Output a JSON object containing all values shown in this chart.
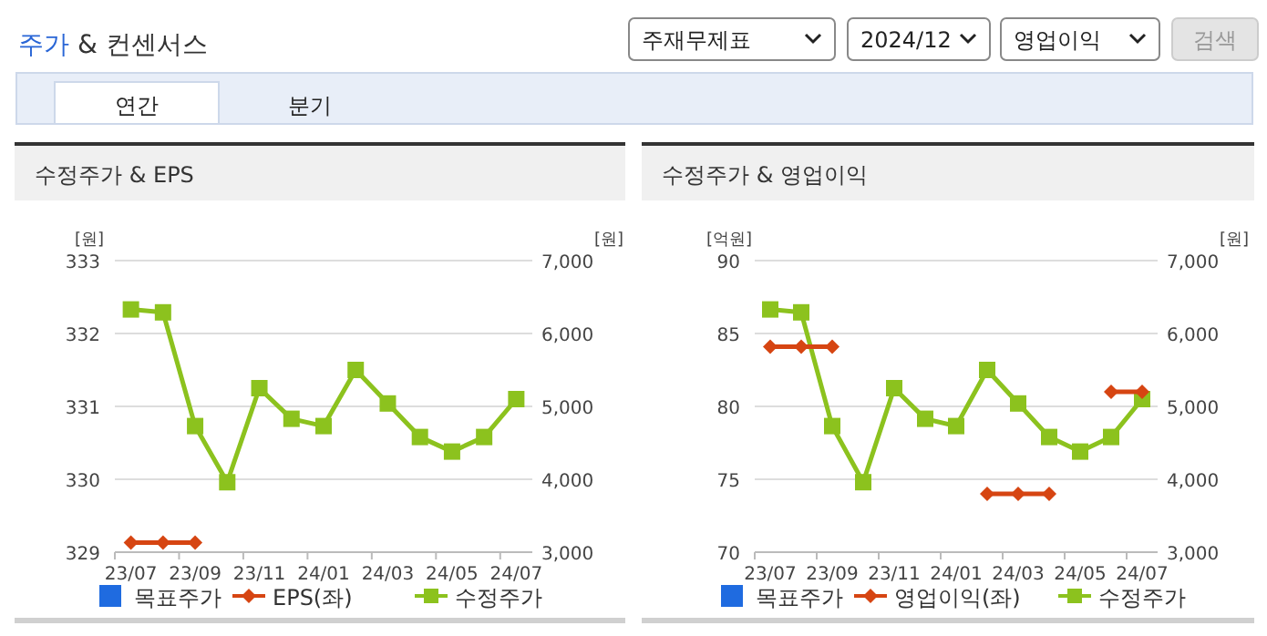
{
  "chart_data": [
    {
      "type": "other",
      "title": "주가 & 컨센서스",
      "annotations": [
        "주재무제표",
        "2024/12",
        "영업이익",
        "검색",
        "연간",
        "분기"
      ]
    },
    {
      "type": "line",
      "title": "수정주가 & EPS",
      "ylabel": "[원]",
      "y2label": "[원]",
      "categories": [
        "23/07",
        null,
        "23/09",
        null,
        "23/11",
        null,
        "24/01",
        null,
        "24/03",
        null,
        "24/05",
        null,
        "24/07"
      ],
      "ylim": [
        329,
        333
      ],
      "yticks": [
        329,
        330,
        331,
        332,
        333
      ],
      "y2lim": [
        3000,
        7000
      ],
      "y2ticks": [
        {
          "value": 3000,
          "label": "3,000"
        },
        {
          "value": 4000,
          "label": "4,000"
        },
        {
          "value": 5000,
          "label": "5,000"
        },
        {
          "value": 6000,
          "label": "6,000"
        },
        {
          "value": 7000,
          "label": "7,000"
        }
      ],
      "grid": "y",
      "legend": "bottom",
      "series": [
        {
          "name": "목표주가",
          "type": "scatter",
          "marker": "square",
          "color": "#1f6be0",
          "values": [
            null,
            null,
            null,
            null,
            null,
            null,
            null,
            null,
            null,
            null,
            null,
            null,
            null
          ]
        },
        {
          "name": "EPS(좌)",
          "type": "line",
          "marker": "diamond",
          "color": "#d64512",
          "values": [
            329.13,
            329.13,
            329.13,
            null,
            null,
            null,
            null,
            null,
            null,
            null,
            null,
            null,
            null
          ]
        },
        {
          "name": "수정주가",
          "type": "line",
          "marker": "square",
          "axis": "y2",
          "color": "#8cc21e",
          "values": [
            6330,
            6290,
            4730,
            3960,
            5250,
            4830,
            4730,
            5500,
            5040,
            4580,
            4380,
            4580,
            5100
          ]
        }
      ]
    },
    {
      "type": "line",
      "title": "수정주가 & 영업이익",
      "ylabel": "[억원]",
      "y2label": "[원]",
      "categories": [
        "23/07",
        null,
        "23/09",
        null,
        "23/11",
        null,
        "24/01",
        null,
        "24/03",
        null,
        "24/05",
        null,
        "24/07"
      ],
      "ylim": [
        70,
        90
      ],
      "yticks": [
        70,
        75,
        80,
        85,
        90
      ],
      "y2lim": [
        3000,
        7000
      ],
      "y2ticks": [
        {
          "value": 3000,
          "label": "3,000"
        },
        {
          "value": 4000,
          "label": "4,000"
        },
        {
          "value": 5000,
          "label": "5,000"
        },
        {
          "value": 6000,
          "label": "6,000"
        },
        {
          "value": 7000,
          "label": "7,000"
        }
      ],
      "grid": "y",
      "legend": "bottom",
      "series": [
        {
          "name": "목표주가",
          "type": "scatter",
          "marker": "square",
          "color": "#1f6be0",
          "values": [
            null,
            null,
            null,
            null,
            null,
            null,
            null,
            null,
            null,
            null,
            null,
            null,
            null
          ]
        },
        {
          "name": "영업이익(좌)",
          "type": "line",
          "marker": "diamond",
          "color": "#d64512",
          "values": [
            84.1,
            84.1,
            84.1,
            null,
            null,
            null,
            null,
            74.0,
            74.0,
            74.0,
            null,
            81.0,
            81.0
          ]
        },
        {
          "name": "수정주가",
          "type": "line",
          "marker": "square",
          "axis": "y2",
          "color": "#8cc21e",
          "values": [
            6330,
            6290,
            4730,
            3960,
            5250,
            4830,
            4730,
            5500,
            5040,
            4580,
            4380,
            4580,
            5100
          ]
        }
      ]
    }
  ]
}
